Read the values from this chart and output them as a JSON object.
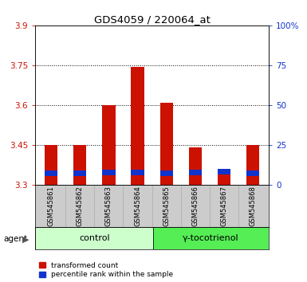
{
  "title": "GDS4059 / 220064_at",
  "samples": [
    "GSM545861",
    "GSM545862",
    "GSM545863",
    "GSM545864",
    "GSM545865",
    "GSM545866",
    "GSM545867",
    "GSM545868"
  ],
  "red_values": [
    3.45,
    3.45,
    3.6,
    3.745,
    3.61,
    3.44,
    3.355,
    3.45
  ],
  "blue_heights": [
    0.022,
    0.022,
    0.022,
    0.022,
    0.022,
    0.022,
    0.022,
    0.022
  ],
  "blue_bottoms": [
    3.332,
    3.332,
    3.335,
    3.335,
    3.332,
    3.335,
    3.338,
    3.332
  ],
  "ymin": 3.3,
  "ymax": 3.9,
  "yticks": [
    3.3,
    3.45,
    3.6,
    3.75,
    3.9
  ],
  "y2ticks": [
    0,
    25,
    50,
    75,
    100
  ],
  "red_color": "#cc1100",
  "blue_color": "#1133cc",
  "bar_width": 0.45,
  "ctrl_color": "#ccffcc",
  "gamma_color": "#55ee55",
  "label_bg": "#cccccc",
  "background_color": "#ffffff"
}
